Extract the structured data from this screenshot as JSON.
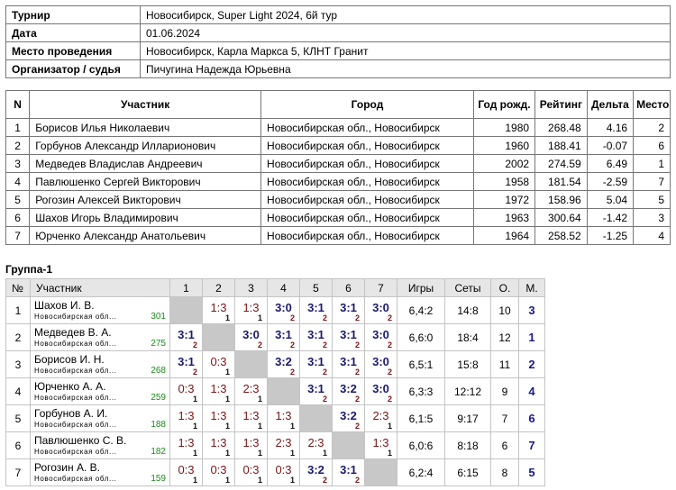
{
  "info": [
    [
      "Турнир",
      "Новосибирск, Super Light 2024, 6й тур"
    ],
    [
      "Дата",
      "01.06.2024"
    ],
    [
      "Место проведения",
      "Новосибирск, Карла Маркса 5, КЛНТ Гранит"
    ],
    [
      "Организатор / судья",
      "Пичугина Надежда Юрьевна"
    ]
  ],
  "participants": {
    "headers": [
      "N",
      "Участник",
      "Город",
      "Год рожд.",
      "Рейтинг",
      "Дельта",
      "Место"
    ],
    "rows": [
      [
        1,
        "Борисов Илья Николаевич",
        "Новосибирская обл., Новосибирск",
        1980,
        268.48,
        4.16,
        2
      ],
      [
        2,
        "Горбунов Александр Илларионович",
        "Новосибирская обл., Новосибирск",
        1960,
        188.41,
        -0.07,
        6
      ],
      [
        3,
        "Медведев Владислав Андреевич",
        "Новосибирская обл., Новосибирск",
        2002,
        274.59,
        6.49,
        1
      ],
      [
        4,
        "Павлюшенко Сергей Викторович",
        "Новосибирская обл., Новосибирск",
        1958,
        181.54,
        -2.59,
        7
      ],
      [
        5,
        "Рогозин Алексей Викторович",
        "Новосибирская обл., Новосибирск",
        1972,
        158.96,
        5.04,
        5
      ],
      [
        6,
        "Шахов Игорь Владимирович",
        "Новосибирская обл., Новосибирск",
        1963,
        300.64,
        -1.42,
        3
      ],
      [
        7,
        "Юрченко Александр Анатольевич",
        "Новосибирская обл., Новосибирск",
        1964,
        258.52,
        -1.25,
        4
      ]
    ]
  },
  "group": {
    "title": "Группа-1",
    "headers": [
      "№",
      "Участник",
      "1",
      "2",
      "3",
      "4",
      "5",
      "6",
      "7",
      "Игры",
      "Сеты",
      "О.",
      "М."
    ],
    "rows": [
      {
        "num": 1,
        "name": "Шахов И. В.",
        "region": "Новосибирская обл...",
        "rating": 301,
        "results": [
          null,
          {
            "score": "1:3",
            "sub": 1
          },
          {
            "score": "1:3",
            "sub": 1
          },
          {
            "score": "3:0",
            "sub": 2
          },
          {
            "score": "3:1",
            "sub": 2
          },
          {
            "score": "3:1",
            "sub": 2
          },
          {
            "score": "3:0",
            "sub": 2
          }
        ],
        "games": "6,4:2",
        "sets": "14:8",
        "points": 10,
        "place": 3
      },
      {
        "num": 2,
        "name": "Медведев В. А.",
        "region": "Новосибирская обл...",
        "rating": 275,
        "results": [
          {
            "score": "3:1",
            "sub": 2
          },
          null,
          {
            "score": "3:0",
            "sub": 2
          },
          {
            "score": "3:1",
            "sub": 2
          },
          {
            "score": "3:1",
            "sub": 2
          },
          {
            "score": "3:1",
            "sub": 2
          },
          {
            "score": "3:0",
            "sub": 2
          }
        ],
        "games": "6,6:0",
        "sets": "18:4",
        "points": 12,
        "place": 1
      },
      {
        "num": 3,
        "name": "Борисов И. Н.",
        "region": "Новосибирская обл...",
        "rating": 268,
        "results": [
          {
            "score": "3:1",
            "sub": 2
          },
          {
            "score": "0:3",
            "sub": 1
          },
          null,
          {
            "score": "3:2",
            "sub": 2
          },
          {
            "score": "3:1",
            "sub": 2
          },
          {
            "score": "3:1",
            "sub": 2
          },
          {
            "score": "3:0",
            "sub": 2
          }
        ],
        "games": "6,5:1",
        "sets": "15:8",
        "points": 11,
        "place": 2
      },
      {
        "num": 4,
        "name": "Юрченко А. А.",
        "region": "Новосибирская обл...",
        "rating": 259,
        "results": [
          {
            "score": "0:3",
            "sub": 1
          },
          {
            "score": "1:3",
            "sub": 1
          },
          {
            "score": "2:3",
            "sub": 1
          },
          null,
          {
            "score": "3:1",
            "sub": 2
          },
          {
            "score": "3:2",
            "sub": 2
          },
          {
            "score": "3:0",
            "sub": 2
          }
        ],
        "games": "6,3:3",
        "sets": "12:12",
        "points": 9,
        "place": 4
      },
      {
        "num": 5,
        "name": "Горбунов А. И.",
        "region": "Новосибирская обл...",
        "rating": 188,
        "results": [
          {
            "score": "1:3",
            "sub": 1
          },
          {
            "score": "1:3",
            "sub": 1
          },
          {
            "score": "1:3",
            "sub": 1
          },
          {
            "score": "1:3",
            "sub": 1
          },
          null,
          {
            "score": "3:2",
            "sub": 2
          },
          {
            "score": "2:3",
            "sub": 1
          }
        ],
        "games": "6,1:5",
        "sets": "9:17",
        "points": 7,
        "place": 6
      },
      {
        "num": 6,
        "name": "Павлюшенко С. В.",
        "region": "Новосибирская обл...",
        "rating": 182,
        "results": [
          {
            "score": "1:3",
            "sub": 1
          },
          {
            "score": "1:3",
            "sub": 1
          },
          {
            "score": "1:3",
            "sub": 1
          },
          {
            "score": "2:3",
            "sub": 1
          },
          {
            "score": "2:3",
            "sub": 1
          },
          null,
          {
            "score": "1:3",
            "sub": 1
          }
        ],
        "games": "6,0:6",
        "sets": "8:18",
        "points": 6,
        "place": 7
      },
      {
        "num": 7,
        "name": "Рогозин А. В.",
        "region": "Новосибирская обл...",
        "rating": 159,
        "results": [
          {
            "score": "0:3",
            "sub": 1
          },
          {
            "score": "0:3",
            "sub": 1
          },
          {
            "score": "0:3",
            "sub": 1
          },
          {
            "score": "0:3",
            "sub": 1
          },
          {
            "score": "3:2",
            "sub": 2
          },
          {
            "score": "3:1",
            "sub": 2
          },
          null
        ],
        "games": "6,2:4",
        "sets": "6:15",
        "points": 8,
        "place": 5
      }
    ]
  }
}
